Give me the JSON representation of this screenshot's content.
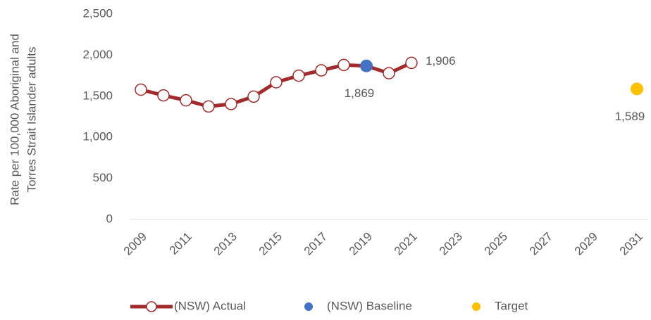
{
  "chart_data": {
    "type": "line",
    "ylabel": [
      "Rate per 100,000 Aboriginal and",
      "Torres Strait Islander adults"
    ],
    "categories": [
      "2009",
      null,
      "2011",
      null,
      "2013",
      null,
      "2015",
      null,
      "2017",
      null,
      "2019",
      null,
      "2021",
      null,
      "2023",
      null,
      "2025",
      null,
      "2027",
      null,
      "2029",
      null,
      "2031"
    ],
    "series": [
      {
        "name": "(NSW) Actual",
        "color": "#a32a2a",
        "marker_fill": "#ffffff",
        "values": [
          1580,
          1510,
          1450,
          1375,
          1405,
          1495,
          1670,
          1750,
          1815,
          1880,
          1869,
          1780,
          1906,
          null,
          null,
          null,
          null,
          null,
          null,
          null,
          null,
          null,
          null
        ],
        "value_labels": [
          null,
          null,
          null,
          null,
          null,
          null,
          null,
          null,
          null,
          null,
          null,
          null,
          "1,906",
          null,
          null,
          null,
          null,
          null,
          null,
          null,
          null,
          null,
          null
        ]
      },
      {
        "name": "(NSW) Baseline",
        "color": "#4472c4",
        "values": [
          null,
          null,
          null,
          null,
          null,
          null,
          null,
          null,
          null,
          null,
          1869,
          null,
          null,
          null,
          null,
          null,
          null,
          null,
          null,
          null,
          null,
          null,
          null
        ],
        "value_labels": [
          null,
          null,
          null,
          null,
          null,
          null,
          null,
          null,
          null,
          null,
          "1,869",
          null,
          null,
          null,
          null,
          null,
          null,
          null,
          null,
          null,
          null,
          null,
          null
        ]
      },
      {
        "name": "Target",
        "color": "#ffc000",
        "values": [
          null,
          null,
          null,
          null,
          null,
          null,
          null,
          null,
          null,
          null,
          null,
          null,
          null,
          null,
          null,
          null,
          null,
          null,
          null,
          null,
          null,
          null,
          1589
        ],
        "value_labels": [
          null,
          null,
          null,
          null,
          null,
          null,
          null,
          null,
          null,
          null,
          null,
          null,
          null,
          null,
          null,
          null,
          null,
          null,
          null,
          null,
          null,
          null,
          "1,589"
        ]
      }
    ],
    "ylim": [
      0,
      2500
    ],
    "yticks": [
      0,
      500,
      {
        "value": 1000,
        "label": "1,000"
      },
      {
        "value": 1500,
        "label": "1,500"
      },
      {
        "value": 2000,
        "label": "2,000"
      },
      {
        "value": 2500,
        "label": "2,500"
      }
    ],
    "grid": false
  }
}
